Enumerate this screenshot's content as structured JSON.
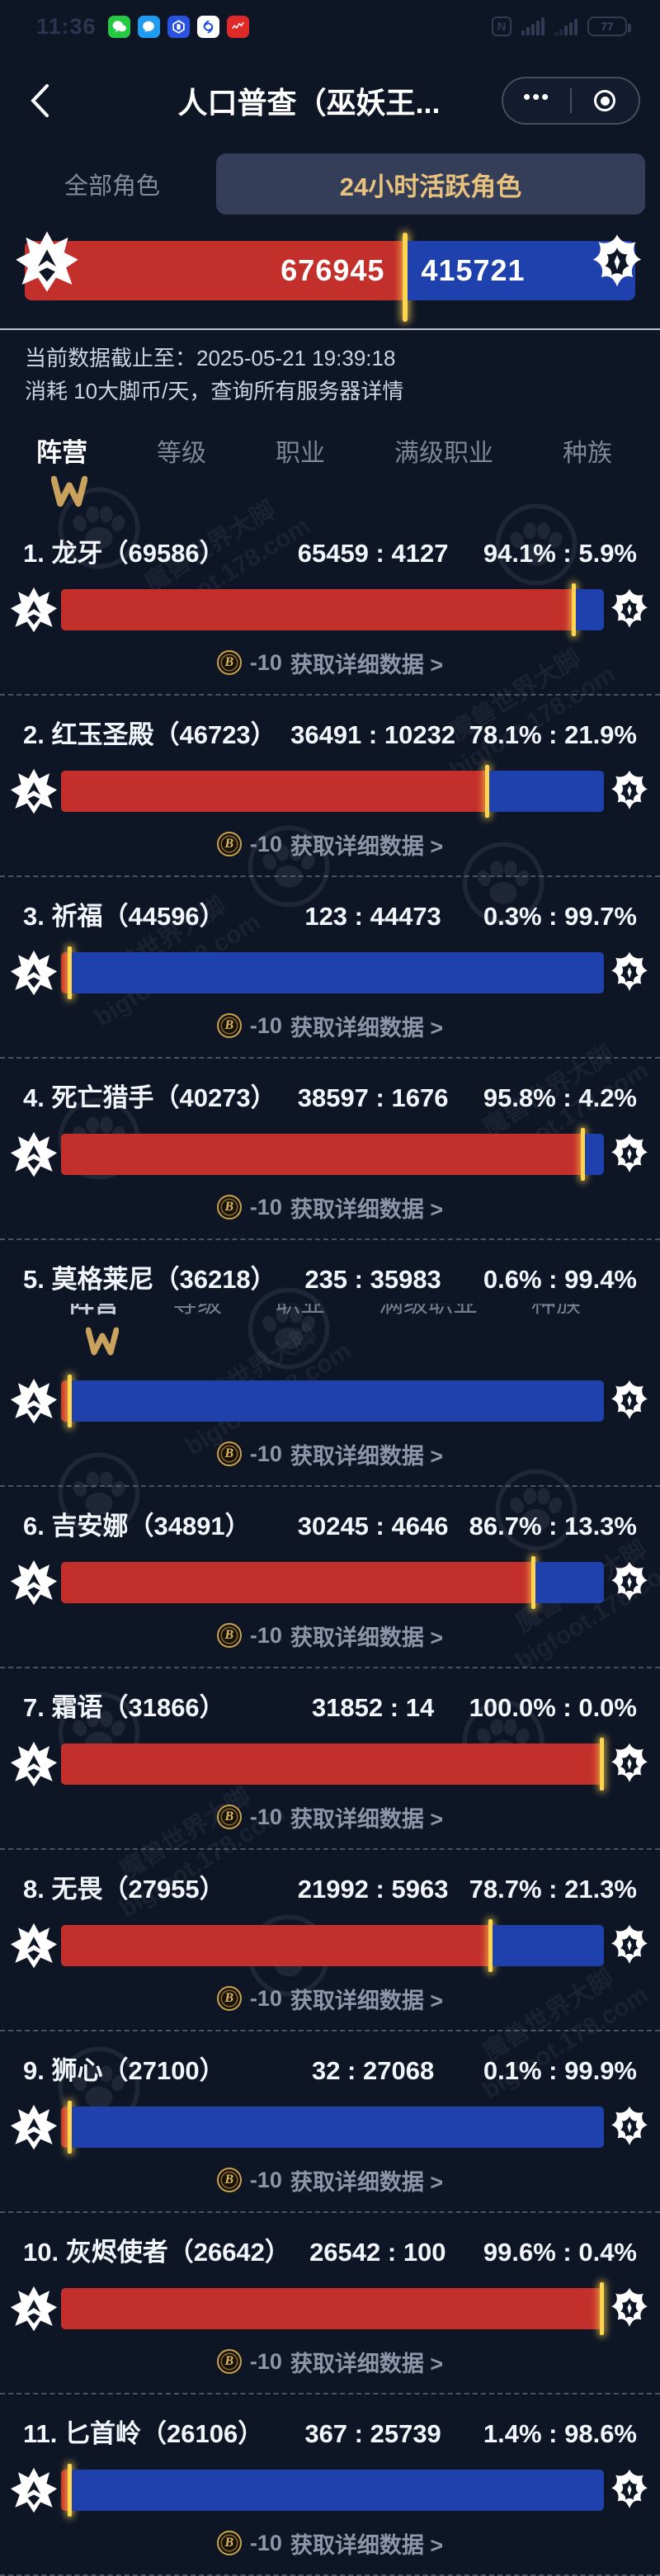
{
  "status_bar": {
    "time": "11:36",
    "battery": "77",
    "nfc": "N"
  },
  "header": {
    "title": "人口普查（巫妖王...",
    "menu_dots": "•••"
  },
  "seg_tabs": {
    "inactive": "全部角色",
    "active": "24小时活跃角色"
  },
  "faction_totals": {
    "horde": "676945",
    "alliance": "415721",
    "horde_pct": 61.95
  },
  "info": {
    "line1": "当前数据截止至：2025-05-21 19:39:18",
    "line2": "消耗 10大脚币/天，查询所有服务器详情"
  },
  "nav_tabs": {
    "items": [
      "阵营",
      "等级",
      "职业",
      "满级职业",
      "种族"
    ],
    "active_index": 0
  },
  "row_action": {
    "cost": "-10",
    "label": "获取详细数据 >",
    "coin_letter": "B"
  },
  "servers": [
    {
      "title": "1. 龙牙（69586）",
      "counts": "65459 : 4127",
      "pcts": "94.1% : 5.9%",
      "horde_pct": 94.1,
      "ghost": false
    },
    {
      "title": "2. 红玉圣殿（46723）",
      "counts": "36491 : 10232",
      "pcts": "78.1% : 21.9%",
      "horde_pct": 78.1,
      "ghost": false
    },
    {
      "title": "3. 祈福（44596）",
      "counts": "123 : 44473",
      "pcts": "0.3% : 99.7%",
      "horde_pct": 0.3,
      "ghost": false
    },
    {
      "title": "4. 死亡猎手（40273）",
      "counts": "38597 : 1676",
      "pcts": "95.8% : 4.2%",
      "horde_pct": 95.8,
      "ghost": false
    },
    {
      "title": "5. 莫格莱尼（36218）",
      "counts": "235 : 35983",
      "pcts": "0.6% : 99.4%",
      "horde_pct": 0.6,
      "ghost": true
    },
    {
      "title": "6. 吉安娜（34891）",
      "counts": "30245 : 4646",
      "pcts": "86.7% : 13.3%",
      "horde_pct": 86.7,
      "ghost": false
    },
    {
      "title": "7. 霜语（31866）",
      "counts": "31852 : 14",
      "pcts": "100.0% : 0.0%",
      "horde_pct": 100,
      "ghost": false
    },
    {
      "title": "8. 无畏（27955）",
      "counts": "21992 : 5963",
      "pcts": "78.7% : 21.3%",
      "horde_pct": 78.7,
      "ghost": false
    },
    {
      "title": "9. 狮心（27100）",
      "counts": "32 : 27068",
      "pcts": "0.1% : 99.9%",
      "horde_pct": 0.1,
      "ghost": false
    },
    {
      "title": "10. 灰烬使者（26642）",
      "counts": "26542 : 100",
      "pcts": "99.6% : 0.4%",
      "horde_pct": 99.6,
      "ghost": false
    },
    {
      "title": "11. 匕首岭（26106）",
      "counts": "367 : 25739",
      "pcts": "1.4% : 98.6%",
      "horde_pct": 1.4,
      "ghost": false
    }
  ],
  "watermark": {
    "text1": "魔兽世界大脚",
    "text2": "bigfoot.178.com"
  },
  "colors": {
    "horde_red": "#c32f2b",
    "alliance_blue": "#1e41ae",
    "divider_gold": "#ffd54f",
    "tab_gold": "#e9c27d",
    "bg": "#0e1626"
  }
}
